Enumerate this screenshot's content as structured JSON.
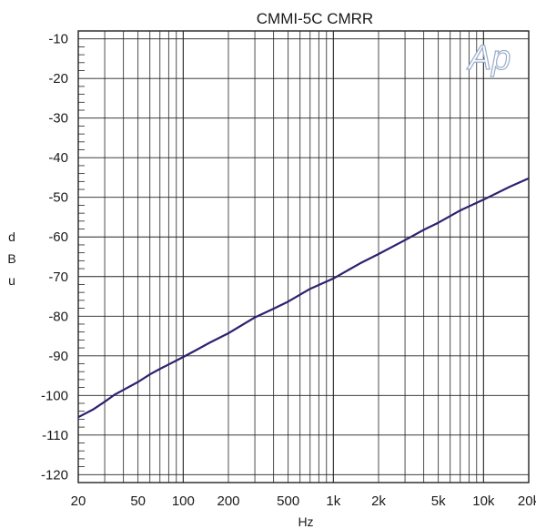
{
  "chart_data": {
    "type": "line",
    "title": "CMMI-5C   CMRR",
    "xlabel": "Hz",
    "ylabel": [
      "d",
      "B",
      "u"
    ],
    "x_scale": "log",
    "xlim": [
      20,
      20000
    ],
    "ylim": [
      -122,
      -8
    ],
    "x_tick_values": [
      20,
      50,
      100,
      200,
      500,
      1000,
      2000,
      5000,
      10000,
      20000
    ],
    "x_tick_labels": [
      "20",
      "50",
      "100",
      "200",
      "500",
      "1k",
      "2k",
      "5k",
      "10k",
      "20k"
    ],
    "y_tick_values": [
      -10,
      -20,
      -30,
      -40,
      -50,
      -60,
      -70,
      -80,
      -90,
      -100,
      -110,
      -120
    ],
    "y_tick_labels": [
      "-10",
      "-20",
      "-30",
      "-40",
      "-50",
      "-60",
      "-70",
      "-80",
      "-90",
      "-100",
      "-110",
      "-120"
    ],
    "grid": true,
    "logo_text": "Ap",
    "line_color": "#2b2270",
    "logo_color": "#9aaccc",
    "series": [
      {
        "x": [
          20,
          25,
          30,
          35,
          40,
          50,
          60,
          70,
          80,
          100,
          120,
          150,
          200,
          300,
          400,
          500,
          700,
          1000,
          1500,
          2000,
          3000,
          4000,
          5000,
          7000,
          10000,
          15000,
          20000
        ],
        "y": [
          -105.5,
          -103.6,
          -101.6,
          -99.8,
          -98.6,
          -96.6,
          -94.7,
          -93.3,
          -92.2,
          -90.3,
          -88.7,
          -86.7,
          -84.3,
          -80.3,
          -78.1,
          -76.3,
          -73.1,
          -70.5,
          -66.7,
          -64.3,
          -60.8,
          -58.2,
          -56.4,
          -53.3,
          -50.6,
          -47.3,
          -45.2
        ]
      }
    ]
  }
}
